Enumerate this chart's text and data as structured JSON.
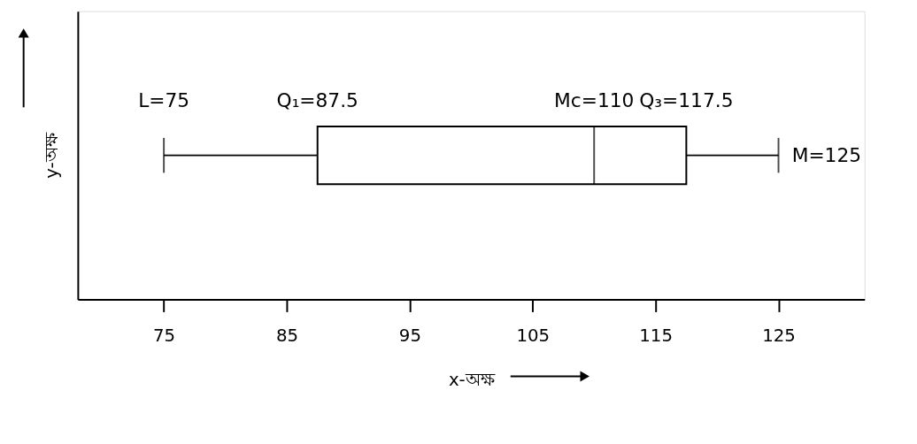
{
  "chart_data": {
    "type": "box",
    "orientation": "horizontal",
    "categories": [
      null
    ],
    "boxes": [
      {
        "low": 75,
        "q1": 87.5,
        "median": 110,
        "q3": 117.5,
        "high": 125
      }
    ],
    "xlim": [
      68,
      132
    ],
    "xticks": [
      75,
      85,
      95,
      105,
      115,
      125
    ],
    "xlabel": "x-অক্ষ",
    "ylabel": "y-অক্ষ",
    "tick_labels": "x",
    "grid": false,
    "annotations": [
      "L=75",
      "Q₁=87.5",
      "Mc=110",
      "Q₃=117.5",
      "M=125"
    ]
  }
}
